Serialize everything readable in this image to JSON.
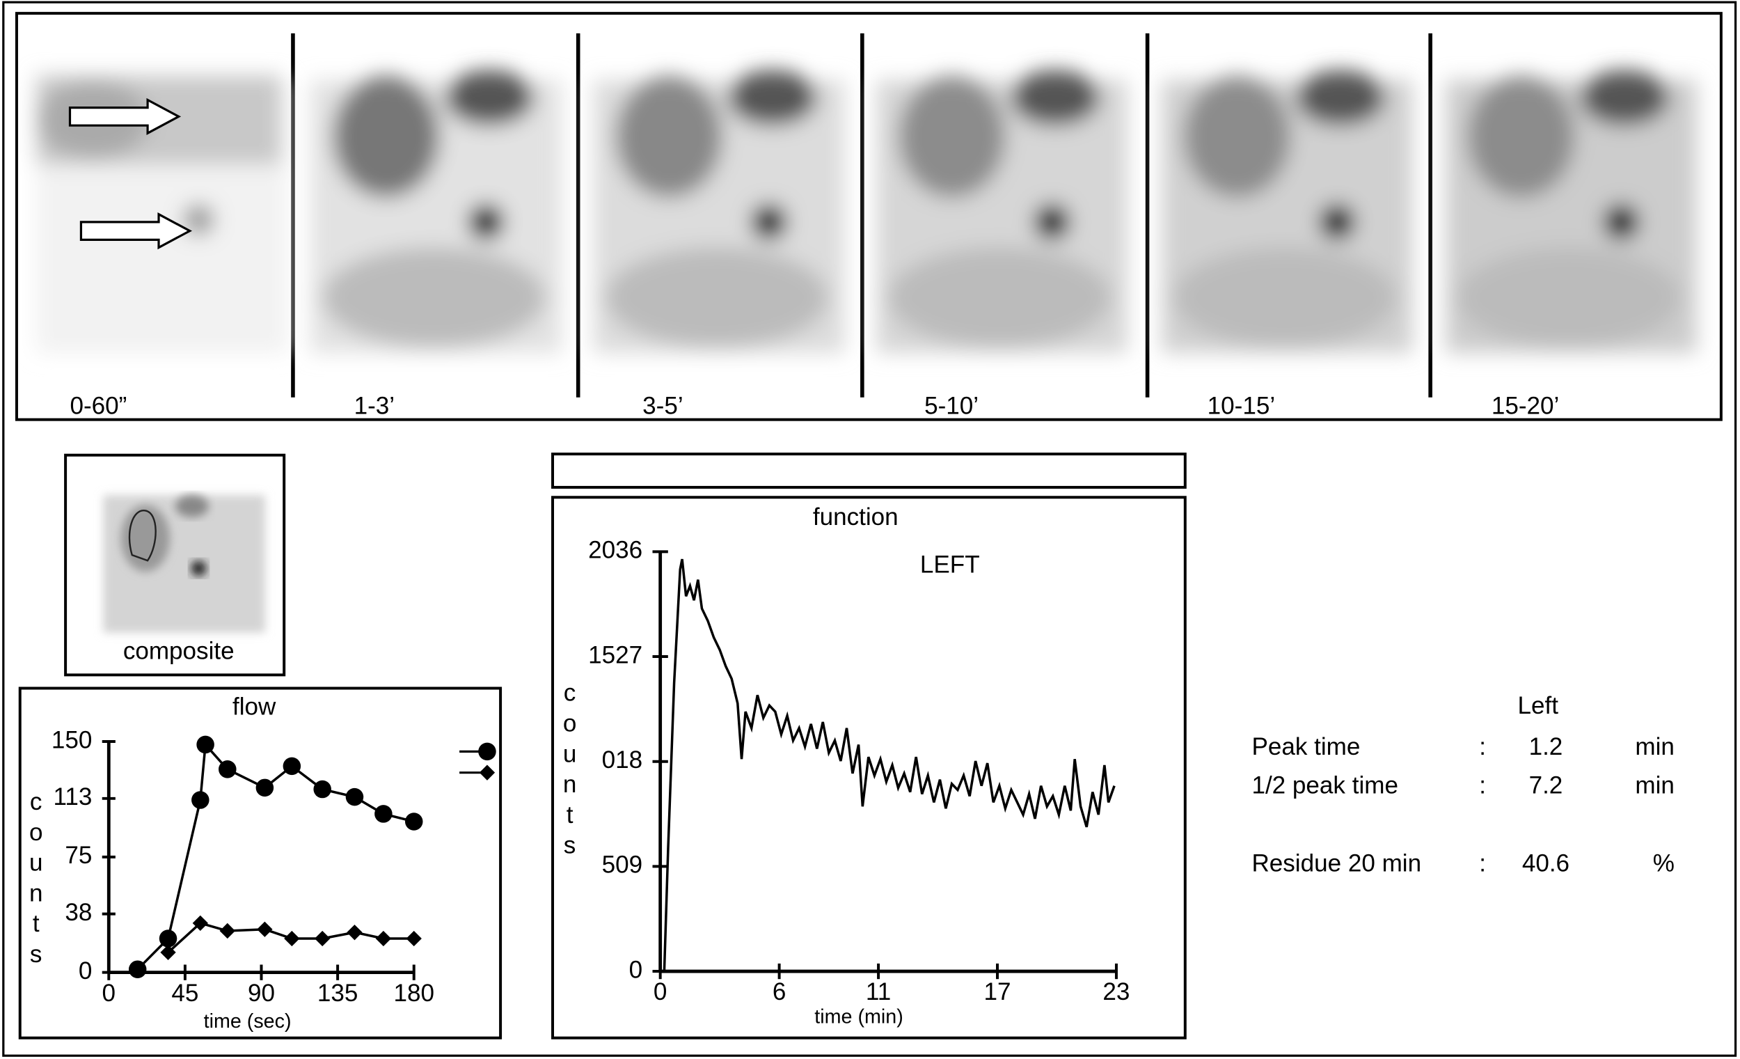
{
  "frames": [
    "0-60”",
    "1-3’",
    "3-5’",
    "5-10’",
    "10-15’",
    "15-20’"
  ],
  "composite": "composite",
  "chart_data": [
    {
      "type": "line",
      "title": "flow",
      "ylabel": "counts",
      "xlabel": "time (sec)",
      "xlim": [
        0,
        180
      ],
      "xticks": [
        0,
        45,
        90,
        135,
        180
      ],
      "ylim": [
        0,
        150
      ],
      "yticks": [
        0,
        38,
        75,
        113,
        150
      ],
      "series": [
        {
          "color": "#000000",
          "marker": "circle",
          "x": [
            17,
            35,
            54,
            57,
            70,
            92,
            108,
            126,
            145,
            162,
            180
          ],
          "values": [
            2,
            22,
            112,
            148,
            132,
            120,
            134,
            119,
            114,
            103,
            98
          ]
        },
        {
          "color": "#000000",
          "marker": "diamond",
          "x": [
            35,
            54,
            70,
            92,
            108,
            126,
            145,
            162,
            180
          ],
          "values": [
            13,
            32,
            27,
            28,
            22,
            22,
            26,
            22,
            22
          ]
        }
      ]
    },
    {
      "type": "line",
      "title": "function",
      "annotation": "LEFT",
      "ylabel": "counts",
      "xlabel": "time (min)",
      "xlim": [
        0,
        23
      ],
      "xticks": [
        0,
        6,
        11,
        17,
        23
      ],
      "ylim": [
        0,
        2036
      ],
      "yticks": [
        0,
        509,
        {
          "value": 1018,
          "label": "018"
        },
        1527,
        2036
      ],
      "series": [
        {
          "color": "#000000",
          "x": [
            0.2,
            0.4,
            0.7,
            1.0,
            1.1,
            1.3,
            1.5,
            1.7,
            1.9,
            2.1,
            2.4,
            2.7,
            3.0,
            3.3,
            3.6,
            3.9,
            4.1,
            4.3,
            4.6,
            4.9,
            5.2,
            5.5,
            5.8,
            6.1,
            6.4,
            6.7,
            7.0,
            7.3,
            7.6,
            7.9,
            8.2,
            8.5,
            8.8,
            9.1,
            9.4,
            9.7,
            10.0,
            10.2,
            10.5,
            10.8,
            11.1,
            11.4,
            11.7,
            12.0,
            12.3,
            12.6,
            12.9,
            13.2,
            13.5,
            13.8,
            14.1,
            14.4,
            14.7,
            15.0,
            15.3,
            15.6,
            15.9,
            16.2,
            16.5,
            16.8,
            17.1,
            17.4,
            17.7,
            18.0,
            18.3,
            18.6,
            18.9,
            19.2,
            19.5,
            19.8,
            20.1,
            20.4,
            20.7,
            20.9,
            21.2,
            21.5,
            21.8,
            22.1,
            22.4,
            22.6,
            22.9
          ],
          "values": [
            0,
            600,
            1400,
            1950,
            2000,
            1820,
            1870,
            1800,
            1900,
            1760,
            1700,
            1620,
            1560,
            1480,
            1420,
            1300,
            1030,
            1260,
            1180,
            1340,
            1230,
            1290,
            1260,
            1150,
            1240,
            1120,
            1180,
            1090,
            1200,
            1080,
            1210,
            1060,
            1120,
            1020,
            1180,
            960,
            1100,
            800,
            1040,
            950,
            1030,
            920,
            1000,
            890,
            960,
            870,
            1040,
            860,
            950,
            820,
            930,
            790,
            910,
            880,
            950,
            850,
            1020,
            900,
            1010,
            820,
            900,
            790,
            880,
            820,
            760,
            860,
            740,
            900,
            800,
            850,
            760,
            900,
            780,
            1030,
            800,
            700,
            870,
            760,
            1000,
            820,
            900
          ]
        }
      ]
    }
  ],
  "results": {
    "header": "Left",
    "rows": [
      [
        "Peak time",
        ":",
        "1.2",
        "min"
      ],
      [
        "1/2 peak time",
        ":",
        "7.2",
        "min"
      ],
      [
        "Residue 20 min",
        ":",
        "40.6",
        "%"
      ]
    ]
  }
}
